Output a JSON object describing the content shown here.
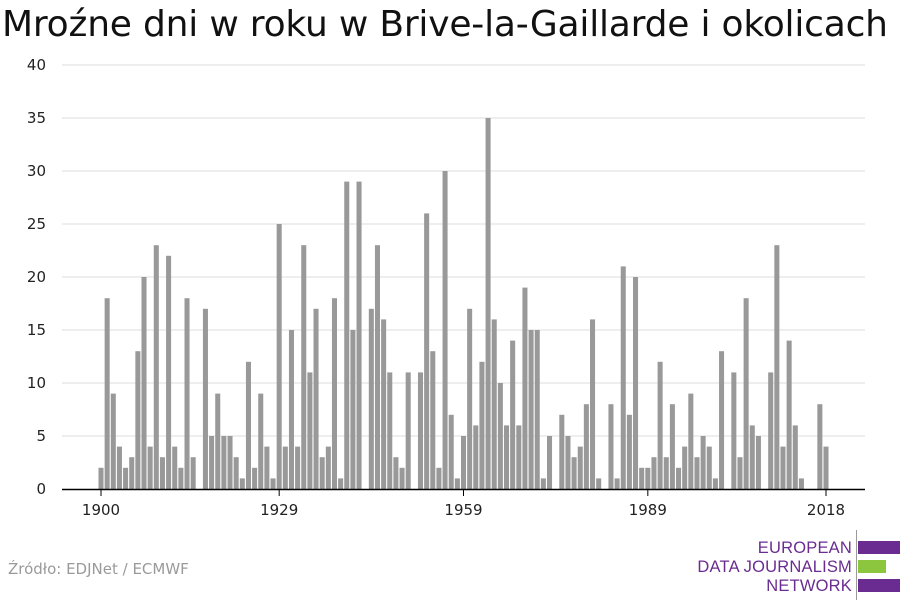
{
  "title": "Mroźne dni w roku w Brive-la-Gaillarde i okolicach",
  "source": "Źródło: EDJNet / ECMWF",
  "logo": {
    "lines": [
      "EUROPEAN",
      "DATA JOURNALISM",
      "NETWORK"
    ],
    "colors": {
      "text": "#6a2c91",
      "bar_purple": "#6a2c91",
      "bar_green": "#8cc63f"
    }
  },
  "colors": {
    "bar": "#999999",
    "grid": "#dddddd",
    "axis": "#000000"
  },
  "chart_data": {
    "type": "bar",
    "x_start": 1900,
    "x_end": 2018,
    "values": [
      2,
      18,
      9,
      4,
      2,
      3,
      13,
      20,
      4,
      23,
      3,
      22,
      4,
      2,
      18,
      3,
      0,
      17,
      5,
      9,
      5,
      5,
      3,
      1,
      12,
      2,
      9,
      4,
      1,
      25,
      4,
      15,
      4,
      23,
      11,
      17,
      3,
      4,
      18,
      1,
      29,
      15,
      29,
      0,
      17,
      23,
      16,
      11,
      3,
      2,
      11,
      0,
      11,
      26,
      13,
      2,
      30,
      7,
      1,
      5,
      17,
      6,
      12,
      35,
      16,
      10,
      6,
      14,
      6,
      19,
      15,
      15,
      1,
      5,
      0,
      7,
      5,
      3,
      4,
      8,
      16,
      1,
      0,
      8,
      1,
      21,
      7,
      20,
      2,
      2,
      3,
      12,
      3,
      8,
      2,
      4,
      9,
      3,
      5,
      4,
      1,
      13,
      0,
      11,
      3,
      18,
      6,
      5,
      0,
      11,
      23,
      4,
      14,
      6,
      1,
      0,
      0,
      8,
      4
    ],
    "x_ticks": [
      1900,
      1929,
      1959,
      1989,
      2018
    ],
    "y_ticks": [
      0,
      5,
      10,
      15,
      20,
      25,
      30,
      35,
      40
    ],
    "ylim": [
      0,
      40
    ],
    "grid": true,
    "legend": "none"
  }
}
